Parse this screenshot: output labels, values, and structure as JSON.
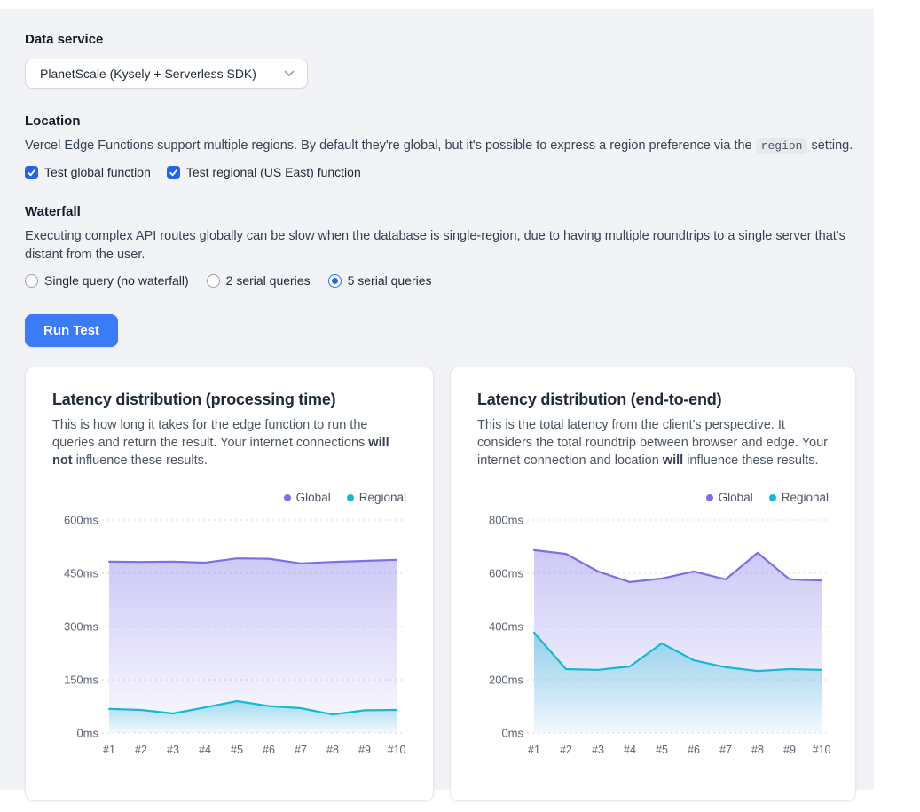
{
  "controls": {
    "data_service": {
      "heading": "Data service",
      "selected": "PlanetScale (Kysely + Serverless SDK)"
    },
    "location": {
      "heading": "Location",
      "description_before": "Vercel Edge Functions support multiple regions. By default they're global, but it's possible to express a region preference via the",
      "description_code": "region",
      "description_after": "setting.",
      "checkboxes": [
        {
          "label": "Test global function",
          "checked": true
        },
        {
          "label": "Test regional (US East) function",
          "checked": true
        }
      ]
    },
    "waterfall": {
      "heading": "Waterfall",
      "description": "Executing complex API routes globally can be slow when the database is single-region, due to having multiple roundtrips to a single server that's distant from the user.",
      "radios": [
        {
          "label": "Single query (no waterfall)",
          "selected": false
        },
        {
          "label": "2 serial queries",
          "selected": false
        },
        {
          "label": "5 serial queries",
          "selected": true
        }
      ]
    },
    "run_button": "Run Test"
  },
  "chart_data": [
    {
      "type": "area",
      "title": "Latency distribution (processing time)",
      "description_before": "This is how long it takes for the edge function to run the queries and return the result. Your internet connections ",
      "description_bold": "will not",
      "description_after": " influence these results.",
      "x": [
        "#1",
        "#2",
        "#3",
        "#4",
        "#5",
        "#6",
        "#7",
        "#8",
        "#9",
        "#10"
      ],
      "xlabel": "",
      "ylabel": "",
      "ylim": [
        0,
        600
      ],
      "yticks": [
        "0ms",
        "150ms",
        "300ms",
        "450ms",
        "600ms"
      ],
      "grid": "dashed-horizontal",
      "legend_position": "top-right",
      "series": [
        {
          "name": "Global",
          "color": "#7b70e8",
          "values": [
            483,
            482,
            483,
            480,
            492,
            491,
            478,
            482,
            485,
            488
          ]
        },
        {
          "name": "Regional",
          "color": "#17b8d4",
          "values": [
            68,
            65,
            55,
            72,
            90,
            76,
            70,
            52,
            64,
            65
          ]
        }
      ]
    },
    {
      "type": "area",
      "title": "Latency distribution (end-to-end)",
      "description_before": "This is the total latency from the client's perspective. It considers the total roundtrip between browser and edge. Your internet connection and location ",
      "description_bold": "will",
      "description_after": " influence these results.",
      "x": [
        "#1",
        "#2",
        "#3",
        "#4",
        "#5",
        "#6",
        "#7",
        "#8",
        "#9",
        "#10"
      ],
      "xlabel": "",
      "ylabel": "",
      "ylim": [
        0,
        800
      ],
      "yticks": [
        "0ms",
        "200ms",
        "400ms",
        "600ms",
        "800ms"
      ],
      "grid": "dashed-horizontal",
      "legend_position": "top-right",
      "series": [
        {
          "name": "Global",
          "color": "#7b70e8",
          "values": [
            687,
            673,
            607,
            567,
            580,
            607,
            577,
            677,
            577,
            573
          ]
        },
        {
          "name": "Regional",
          "color": "#17b8d4",
          "values": [
            377,
            240,
            237,
            250,
            337,
            273,
            247,
            233,
            240,
            237
          ]
        }
      ]
    }
  ]
}
